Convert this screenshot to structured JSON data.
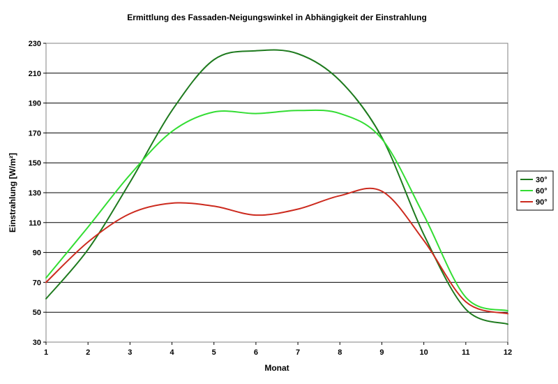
{
  "chart_data": {
    "type": "line",
    "title": "Ermittlung des Fassaden-Neigungswinkel in Abhängigkeit der Einstrahlung",
    "xlabel": "Monat",
    "ylabel": "Einstrahlung [W/m²]",
    "x": [
      1,
      2,
      3,
      4,
      5,
      6,
      7,
      8,
      9,
      10,
      11,
      12
    ],
    "xlim": [
      1,
      12
    ],
    "ylim": [
      30,
      230
    ],
    "yticks": [
      30,
      50,
      70,
      90,
      110,
      130,
      150,
      170,
      190,
      210,
      230
    ],
    "grid": "horizontal",
    "legend_position": "right",
    "series": [
      {
        "name": "30°",
        "color": "#1e7a1e",
        "values": [
          59,
          92,
          137,
          185,
          219,
          225,
          223,
          205,
          167,
          102,
          52,
          42
        ]
      },
      {
        "name": "60°",
        "color": "#33dd33",
        "values": [
          73,
          107,
          142,
          171,
          184,
          183,
          185,
          183,
          166,
          115,
          60,
          51
        ]
      },
      {
        "name": "90°",
        "color": "#cc2a1e",
        "values": [
          70,
          97,
          116,
          123,
          121,
          115,
          119,
          128,
          131,
          98,
          57,
          49
        ]
      }
    ]
  }
}
